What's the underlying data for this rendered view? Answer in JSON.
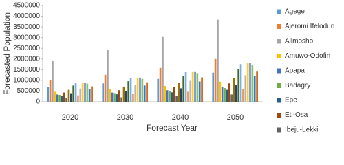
{
  "chart_data": {
    "type": "bar",
    "x_label": "Forecast Year",
    "y_label": "Forecasted Population",
    "categories": [
      "2020",
      "2030",
      "2040",
      "2050"
    ],
    "ylim": [
      0,
      4500000
    ],
    "yticks": [
      0,
      500000,
      1000000,
      1500000,
      2000000,
      2500000,
      3000000,
      3500000,
      4000000,
      4500000
    ],
    "grid": false,
    "legend": "right",
    "series": [
      {
        "name": "Agege",
        "color": "#5b9bd5",
        "values": [
          680000,
          860000,
          1070000,
          1360000
        ]
      },
      {
        "name": "Ajeromi Ifelodun",
        "color": "#ed7d31",
        "values": [
          1000000,
          1260000,
          1580000,
          2000000
        ]
      },
      {
        "name": "Alimosho",
        "color": "#a5a5a5",
        "values": [
          1920000,
          2420000,
          3030000,
          3840000
        ]
      },
      {
        "name": "Amuwo-Odofin",
        "color": "#ffc000",
        "values": [
          470000,
          590000,
          740000,
          940000
        ]
      },
      {
        "name": "Apapa",
        "color": "#4472c4",
        "values": [
          340000,
          430000,
          540000,
          680000
        ]
      },
      {
        "name": "Badagry",
        "color": "#70ad47",
        "values": [
          320000,
          400000,
          510000,
          640000
        ]
      },
      {
        "name": "Epe",
        "color": "#255e91",
        "values": [
          280000,
          350000,
          440000,
          560000
        ]
      },
      {
        "name": "Eti-Osa",
        "color": "#9e480e",
        "values": [
          430000,
          540000,
          680000,
          860000
        ]
      },
      {
        "name": "Ibeju-Lekki",
        "color": "#636363",
        "values": [
          170000,
          210000,
          270000,
          340000
        ]
      },
      {
        "name": null,
        "color": "#997300",
        "values": [
          560000,
          710000,
          880000,
          1120000
        ]
      },
      {
        "name": null,
        "color": "#264478",
        "values": [
          400000,
          500000,
          630000,
          800000
        ]
      },
      {
        "name": null,
        "color": "#43682b",
        "values": [
          760000,
          960000,
          1200000,
          1520000
        ]
      },
      {
        "name": null,
        "color": "#7cafdd",
        "values": [
          880000,
          1110000,
          1390000,
          1760000
        ]
      },
      {
        "name": null,
        "color": "#f1975a",
        "values": [
          300000,
          380000,
          470000,
          600000
        ]
      },
      {
        "name": null,
        "color": "#b7b7b7",
        "values": [
          620000,
          780000,
          980000,
          1240000
        ]
      },
      {
        "name": null,
        "color": "#ffcd33",
        "values": [
          900000,
          1130000,
          1420000,
          1800000
        ]
      },
      {
        "name": null,
        "color": "#698ed0",
        "values": [
          900000,
          1130000,
          1420000,
          1800000
        ]
      },
      {
        "name": null,
        "color": "#8cc168",
        "values": [
          850000,
          1070000,
          1340000,
          1700000
        ]
      },
      {
        "name": null,
        "color": "#327dc2",
        "values": [
          600000,
          760000,
          950000,
          1200000
        ]
      },
      {
        "name": null,
        "color": "#d26012",
        "values": [
          720000,
          910000,
          1140000,
          1440000
        ]
      }
    ]
  }
}
